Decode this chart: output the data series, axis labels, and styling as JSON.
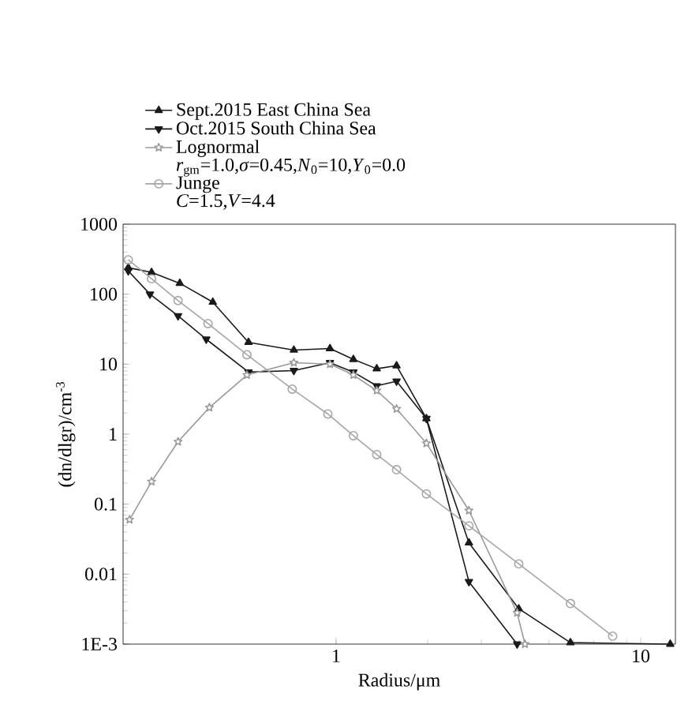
{
  "chart_data": {
    "type": "line",
    "xlabel": "Radius/μm",
    "ylabel": "(dn/dlgr)/cm$^{-3}$",
    "log": "xy",
    "xlim": [
      0.2,
      13
    ],
    "ylim": [
      0.001,
      1000
    ],
    "xticks": [
      1,
      10
    ],
    "yticks": [
      {
        "value": 0.001,
        "label": "1E-3"
      },
      0.01,
      0.1,
      1,
      10,
      100,
      1000
    ],
    "legend": "top",
    "annotations": [
      "*r*$_{gm}$=1.0,*σ*=0.45,*N*$_{0}$=10,*Y*$_{0}$=0.0",
      "*C*=1.5,*V*=4.4"
    ],
    "series": [
      {
        "name": "Sept.2015 East China Sea",
        "color": "#1a1a1a",
        "marker": "triangle",
        "x": [
          0.208,
          0.248,
          0.307,
          0.394,
          0.516,
          0.727,
          0.955,
          1.14,
          1.36,
          1.58,
          1.98,
          2.73,
          3.98,
          5.88,
          12.5
        ],
        "values": [
          239,
          205,
          143,
          77,
          20.5,
          15.9,
          16.7,
          11.7,
          8.6,
          9.5,
          1.67,
          0.028,
          0.0032,
          0.00105,
          0.001
        ]
      },
      {
        "name": "Oct.2015 South China Sea",
        "color": "#1a1a1a",
        "marker": "triangle-down",
        "x": [
          0.208,
          0.245,
          0.303,
          0.375,
          0.516,
          0.727,
          0.955,
          1.14,
          1.36,
          1.58,
          1.98,
          2.73,
          3.93
        ],
        "values": [
          215,
          100,
          49,
          22.7,
          7.7,
          8.1,
          10.5,
          7.7,
          4.9,
          5.7,
          1.67,
          0.0078,
          0.001
        ]
      },
      {
        "name": "Lognormal",
        "color": "#999999",
        "marker": "star",
        "x": [
          0.21,
          0.248,
          0.303,
          0.384,
          0.51,
          0.727,
          0.955,
          1.14,
          1.36,
          1.58,
          1.98,
          2.73,
          3.93,
          4.17
        ],
        "values": [
          0.06,
          0.21,
          0.78,
          2.4,
          7.0,
          10.5,
          10,
          7.0,
          4.2,
          2.3,
          0.74,
          0.081,
          0.0028,
          0.001
        ]
      },
      {
        "name": "Junge",
        "color": "#a6a6a6",
        "marker": "circle",
        "x": [
          0.208,
          0.248,
          0.303,
          0.38,
          0.51,
          0.718,
          0.94,
          1.14,
          1.36,
          1.58,
          1.98,
          2.73,
          3.98,
          5.88,
          8.09
        ],
        "values": [
          309,
          166,
          81,
          38,
          13.6,
          4.4,
          1.94,
          0.95,
          0.51,
          0.31,
          0.14,
          0.049,
          0.014,
          0.0038,
          0.0013
        ]
      }
    ]
  }
}
